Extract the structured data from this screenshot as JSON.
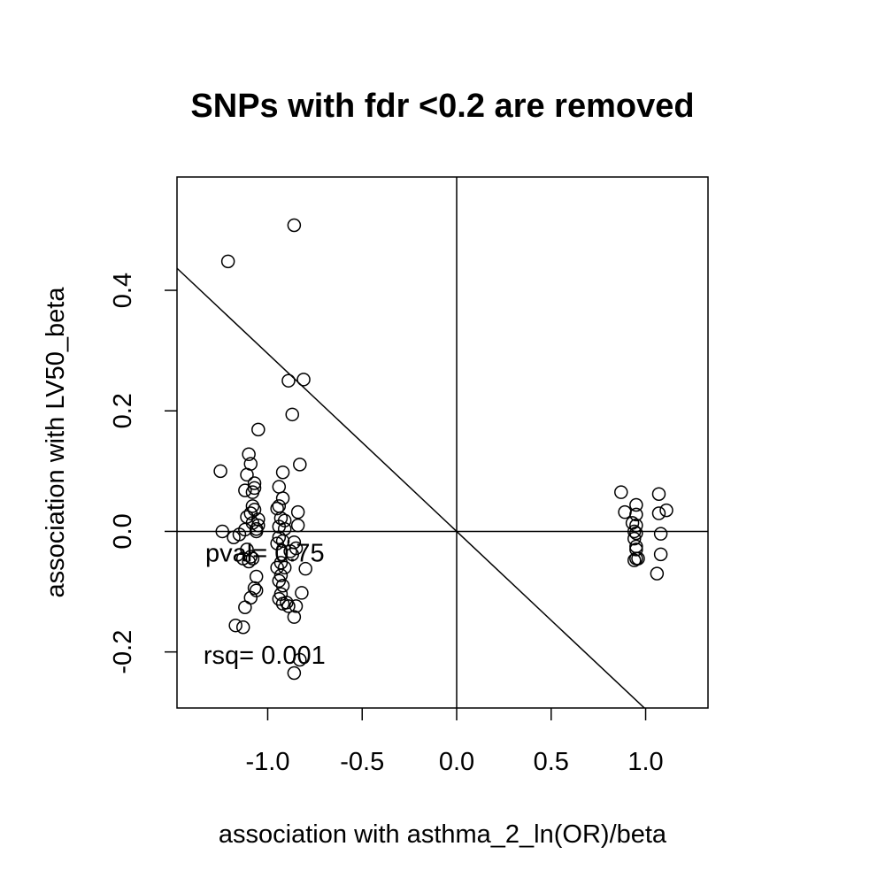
{
  "chart_data": {
    "type": "scatter",
    "title": "SNPs with fdr <0.2 are removed",
    "xlabel": "association with asthma_2_ln(OR)/beta",
    "ylabel": "association with LV50_beta",
    "xlim": [
      -1.48,
      1.33
    ],
    "ylim": [
      -0.293,
      0.588
    ],
    "x_ticks": [
      -1.0,
      -0.5,
      0.0,
      0.5,
      1.0
    ],
    "x_tick_labels": [
      "-1.0",
      "-0.5",
      "0.0",
      "0.5",
      "1.0"
    ],
    "y_ticks": [
      -0.2,
      0.0,
      0.2,
      0.4
    ],
    "y_tick_labels": [
      "-0.2",
      "0.0",
      "0.2",
      "0.4"
    ],
    "reference_lines": {
      "vertical_x": 0,
      "horizontal_y": 0
    },
    "fit_line": {
      "intercept": 0,
      "slope": -0.295
    },
    "annotations": [
      {
        "name": "pval",
        "text": "pval= 0.75",
        "x": -1.33,
        "y": -0.035
      },
      {
        "name": "rsq",
        "text": "rsq= 0.001",
        "x": -1.34,
        "y": -0.205
      }
    ],
    "points": [
      [
        -0.86,
        0.508
      ],
      [
        -1.21,
        0.448
      ],
      [
        -0.89,
        0.25
      ],
      [
        -0.81,
        0.252
      ],
      [
        -0.87,
        0.194
      ],
      [
        -1.05,
        0.169
      ],
      [
        -1.1,
        0.128
      ],
      [
        -1.09,
        0.112
      ],
      [
        -0.83,
        0.111
      ],
      [
        -1.25,
        0.1
      ],
      [
        -0.92,
        0.098
      ],
      [
        -1.11,
        0.094
      ],
      [
        -1.07,
        0.08
      ],
      [
        -1.07,
        0.072
      ],
      [
        -1.12,
        0.068
      ],
      [
        -0.94,
        0.074
      ],
      [
        -1.08,
        0.065
      ],
      [
        -0.92,
        0.055
      ],
      [
        -0.94,
        0.042
      ],
      [
        -1.08,
        0.042
      ],
      [
        -0.95,
        0.038
      ],
      [
        -1.07,
        0.036
      ],
      [
        -1.09,
        0.03
      ],
      [
        -0.84,
        0.032
      ],
      [
        -1.11,
        0.024
      ],
      [
        -1.05,
        0.02
      ],
      [
        -0.93,
        0.022
      ],
      [
        -0.91,
        0.018
      ],
      [
        -1.08,
        0.014
      ],
      [
        -1.05,
        0.01
      ],
      [
        -0.94,
        0.008
      ],
      [
        -1.06,
        0.004
      ],
      [
        -1.24,
        0.0
      ],
      [
        -1.12,
        0.003
      ],
      [
        -1.06,
        0.0
      ],
      [
        -0.91,
        0.004
      ],
      [
        -0.84,
        0.01
      ],
      [
        -1.15,
        -0.005
      ],
      [
        -1.18,
        -0.01
      ],
      [
        -0.94,
        -0.01
      ],
      [
        -0.92,
        -0.016
      ],
      [
        -0.86,
        -0.018
      ],
      [
        -0.95,
        -0.02
      ],
      [
        -0.85,
        -0.028
      ],
      [
        -0.88,
        -0.033
      ],
      [
        -0.87,
        -0.038
      ],
      [
        -1.11,
        -0.03
      ],
      [
        -1.09,
        -0.042
      ],
      [
        -1.13,
        -0.045
      ],
      [
        -1.08,
        -0.045
      ],
      [
        -1.1,
        -0.05
      ],
      [
        -0.93,
        -0.052
      ],
      [
        -0.95,
        -0.06
      ],
      [
        -0.91,
        -0.06
      ],
      [
        -0.8,
        -0.062
      ],
      [
        -1.06,
        -0.075
      ],
      [
        -0.93,
        -0.073
      ],
      [
        -0.94,
        -0.082
      ],
      [
        -0.92,
        -0.09
      ],
      [
        -1.07,
        -0.094
      ],
      [
        -1.06,
        -0.098
      ],
      [
        -0.82,
        -0.102
      ],
      [
        -0.93,
        -0.104
      ],
      [
        -1.09,
        -0.11
      ],
      [
        -0.94,
        -0.112
      ],
      [
        -0.9,
        -0.118
      ],
      [
        -0.92,
        -0.12
      ],
      [
        -0.89,
        -0.124
      ],
      [
        -1.12,
        -0.126
      ],
      [
        -0.85,
        -0.124
      ],
      [
        -0.86,
        -0.142
      ],
      [
        -1.17,
        -0.156
      ],
      [
        -1.13,
        -0.159
      ],
      [
        -0.83,
        -0.213
      ],
      [
        -0.86,
        -0.235
      ],
      [
        0.87,
        0.065
      ],
      [
        1.07,
        0.062
      ],
      [
        0.95,
        0.044
      ],
      [
        1.11,
        0.035
      ],
      [
        0.89,
        0.032
      ],
      [
        1.07,
        0.03
      ],
      [
        0.95,
        0.028
      ],
      [
        0.93,
        0.014
      ],
      [
        0.95,
        0.01
      ],
      [
        0.94,
        0.0
      ],
      [
        0.95,
        -0.003
      ],
      [
        1.08,
        -0.004
      ],
      [
        0.94,
        -0.012
      ],
      [
        0.95,
        -0.025
      ],
      [
        0.95,
        -0.03
      ],
      [
        1.08,
        -0.038
      ],
      [
        0.95,
        -0.045
      ],
      [
        0.96,
        -0.045
      ],
      [
        0.94,
        -0.048
      ],
      [
        1.06,
        -0.07
      ]
    ]
  }
}
